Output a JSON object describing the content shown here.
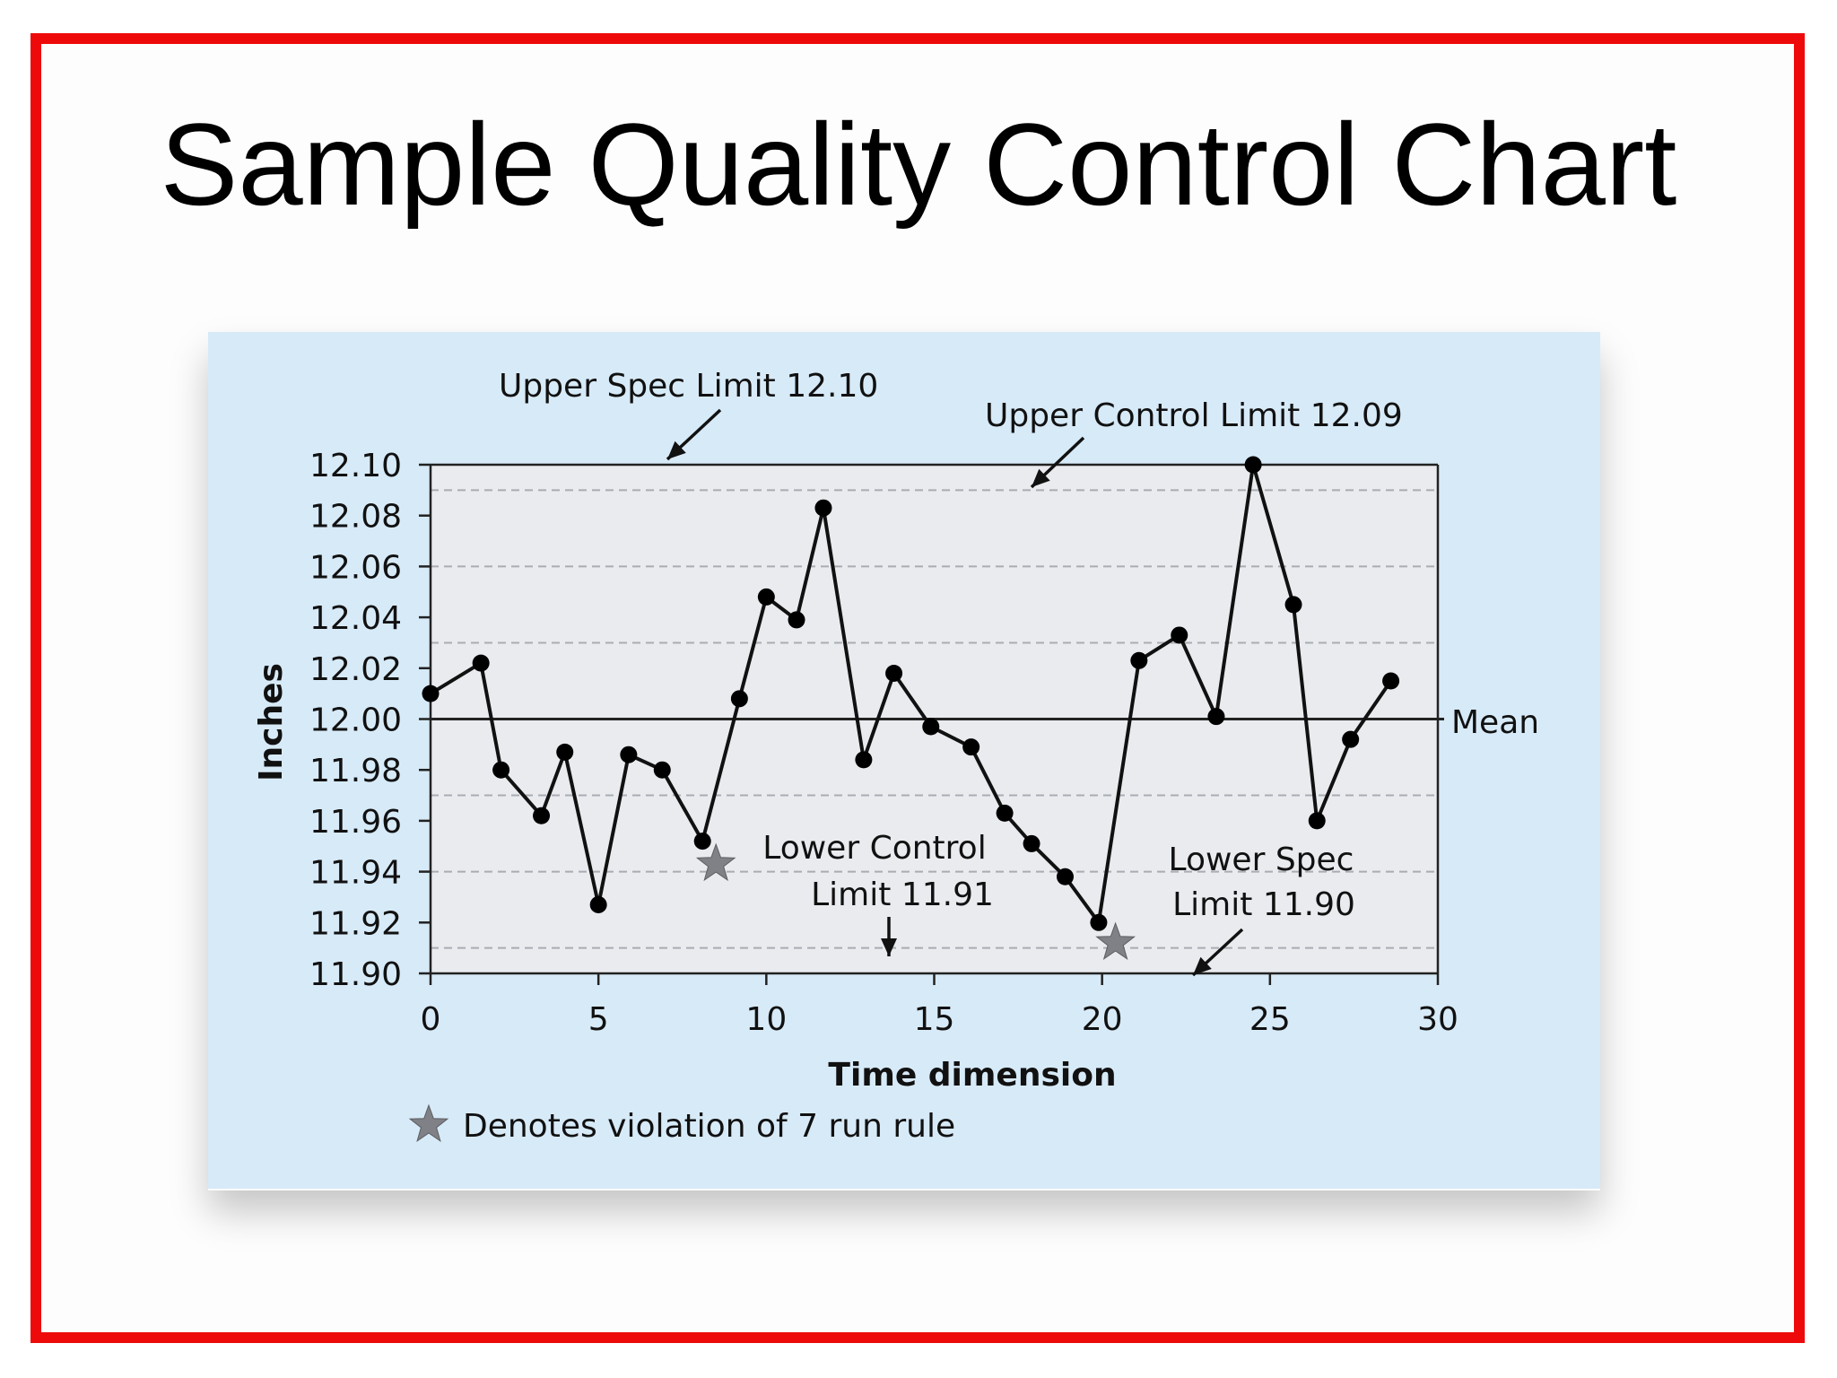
{
  "slide": {
    "title": "Sample Quality Control Chart",
    "border_color": "#ee0a0a"
  },
  "chart_data": {
    "type": "line",
    "xlabel": "Time dimension",
    "ylabel": "Inches",
    "xlim": [
      0,
      30
    ],
    "ylim": [
      11.9,
      12.1
    ],
    "xticks": [
      "0",
      "5",
      "10",
      "15",
      "20",
      "25",
      "30"
    ],
    "yticks": [
      "12.10",
      "12.08",
      "12.06",
      "12.04",
      "12.02",
      "12.00",
      "11.98",
      "11.96",
      "11.94",
      "11.92",
      "11.90"
    ],
    "grid_lines": [
      12.09,
      12.06,
      12.03,
      11.97,
      11.94,
      11.91
    ],
    "reference_lines": {
      "upper_spec_limit": 12.1,
      "upper_control_limit": 12.09,
      "mean": 12.0,
      "lower_control_limit": 11.91,
      "lower_spec_limit": 11.9
    },
    "series": [
      {
        "x": [
          0,
          1.5,
          2.1,
          3.3,
          4.0,
          5.0,
          5.9,
          6.9,
          8.1,
          9.2,
          10.0,
          10.9,
          11.7,
          12.9,
          13.8,
          14.9,
          16.1,
          17.1,
          17.9,
          18.9,
          19.9,
          21.1,
          22.3,
          23.4,
          24.5,
          25.7,
          26.4,
          27.4,
          28.6
        ],
        "y": [
          12.01,
          12.022,
          11.98,
          11.962,
          11.987,
          11.927,
          11.986,
          11.98,
          11.952,
          12.008,
          12.048,
          12.039,
          12.083,
          11.984,
          12.018,
          11.997,
          11.989,
          11.963,
          11.951,
          11.938,
          11.92,
          12.023,
          12.033,
          12.001,
          12.1,
          12.045,
          11.96,
          11.992,
          12.015
        ]
      }
    ],
    "violations": [
      {
        "x": 8.5,
        "y": 11.943
      },
      {
        "x": 20.4,
        "y": 11.912
      }
    ],
    "annotations": {
      "upper_spec": "Upper Spec Limit 12.10",
      "upper_control": "Upper Control Limit 12.09",
      "mean": "Mean",
      "lower_control_line1": "Lower Control",
      "lower_control_line2": "Limit 11.91",
      "lower_spec_line1": "Lower Spec",
      "lower_spec_line2": "Limit 11.90"
    },
    "legend": "Denotes violation of 7 run rule",
    "colors": {
      "figure_bg": "#d7eaf8",
      "plot_bg": "#e9ebef",
      "line": "#111111",
      "grid": "#a9acb2",
      "star": "#7f8186"
    },
    "grid": true
  }
}
